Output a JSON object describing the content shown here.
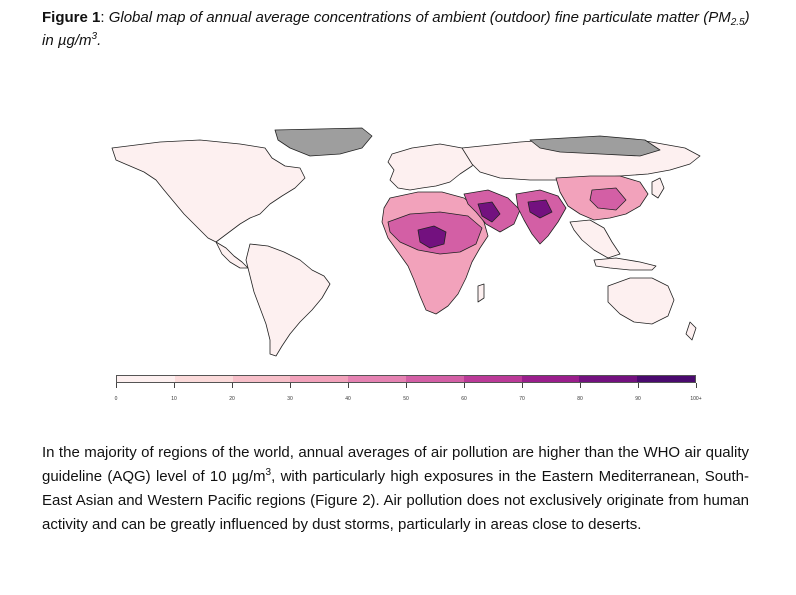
{
  "caption": {
    "label": "Figure 1",
    "sep": ": ",
    "text_a": "Global map of annual average concentrations of ambient (outdoor) fine particulate matter (PM",
    "sub": "2.5",
    "text_b": ") in µg/m",
    "sup": "3",
    "text_c": "."
  },
  "legend": {
    "ticks": [
      "0",
      "10",
      "20",
      "30",
      "40",
      "50",
      "60",
      "70",
      "80",
      "90",
      "100+"
    ],
    "colors": [
      "#ffffff",
      "#fdf0f0",
      "#fbdada",
      "#f7bfc9",
      "#f2a2bb",
      "#e582b2",
      "#d35fa5",
      "#bb3a98",
      "#9a1e8c",
      "#73117f",
      "#4a0a6e"
    ]
  },
  "map_colors": {
    "ocean": "#ffffff",
    "border": "#222222",
    "nodata": "#9e9e9e",
    "low": "#fdf0f0",
    "mid": "#f2a2bb",
    "high": "#d35fa5",
    "veryhigh": "#73117f"
  },
  "body": {
    "part1": "In the majority of regions of the world, annual averages of air pollution are higher than the WHO air quality guideline (AQG) level of 10 µg/m",
    "sup": "3",
    "part2": ", with particularly high exposures in the Eastern Mediterranean, South-East Asian and Western Pacific regions (Figure 2). Air pollution does not exclusively originate from human activity and can be greatly influenced by dust storms, particularly in areas close to deserts."
  }
}
